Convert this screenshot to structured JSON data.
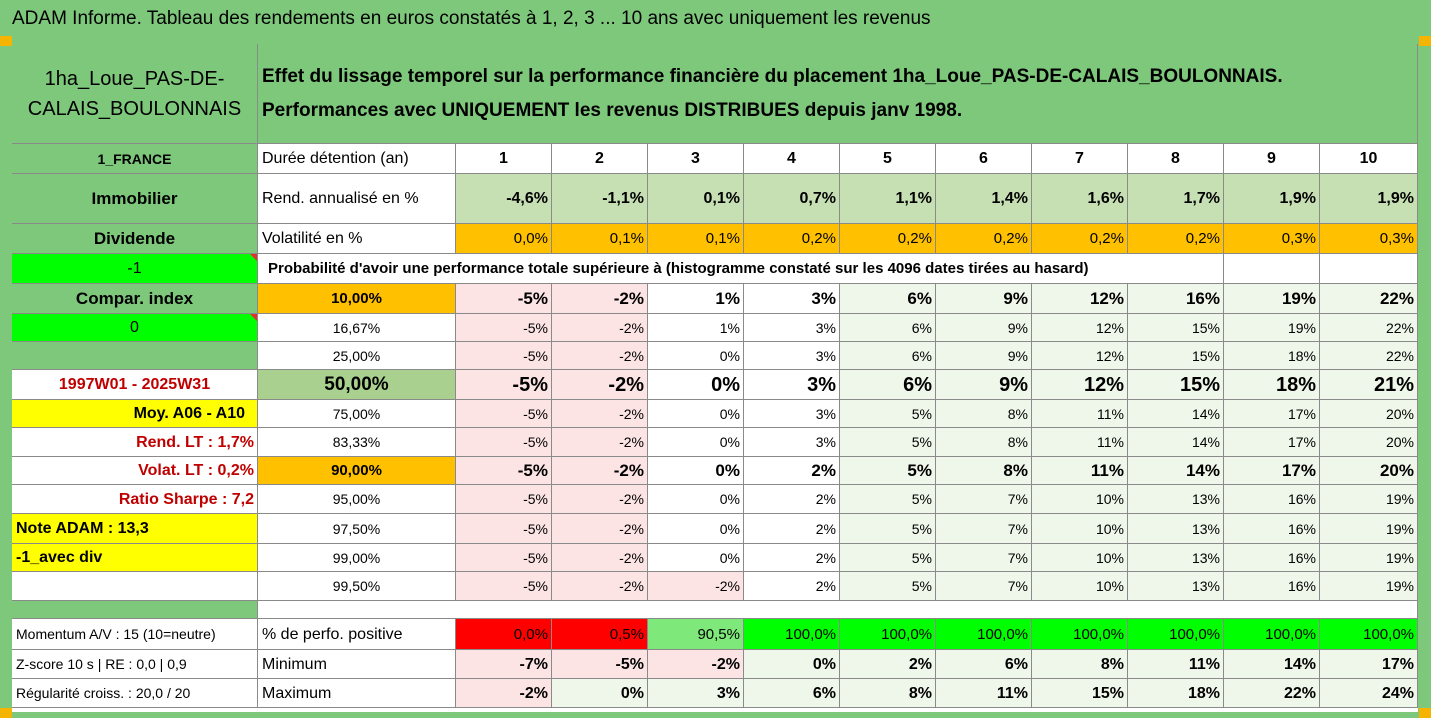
{
  "title": "ADAM Informe. Tableau des rendements en euros constatés à 1, 2, 3 ... 10 ans avec uniquement les revenus",
  "colors": {
    "header_green": "#7ec87c",
    "light_green": "#c6e0b4",
    "orange": "#ffc000",
    "bright_green": "#00ff00",
    "red": "#ff0000",
    "yellow": "#ffff00",
    "pink": "#fde4e4",
    "pale_green": "#eef7ea",
    "dark_red_text": "#c00000"
  },
  "left": {
    "fund_name": "1ha_Loue_PAS-DE-CALAIS_BOULONNAIS",
    "country": "1_FRANCE",
    "category": "Immobilier",
    "dividend_label": "Dividende",
    "flag_value": "-1",
    "compar_label": "Compar. index",
    "compar_value": "0",
    "period": "1997W01 - 2025W31",
    "moy": "Moy. A06 - A10",
    "rend_lt": "Rend. LT :    1,7%",
    "volat_lt": "Volat. LT :    0,2%",
    "sharpe": "Ratio Sharpe :    7,2",
    "note": "Note ADAM : 13,3",
    "avec_div": "-1_avec div",
    "momentum": "Momentum A/V : 15 (10=neutre)",
    "zscore": "Z-score 10 s  | RE : 0,0  | 0,9",
    "regularite": "Régularité croiss. : 20,0 / 20"
  },
  "description": "Effet du lissage temporel sur la performance financière du placement 1ha_Loue_PAS-DE-CALAIS_BOULONNAIS. Performances avec UNIQUEMENT les revenus DISTRIBUES depuis janv 1998.",
  "header": {
    "duration_label": "Durée détention (an)",
    "years": [
      "1",
      "2",
      "3",
      "4",
      "5",
      "6",
      "7",
      "8",
      "9",
      "10"
    ]
  },
  "rend": {
    "label": "Rend. annualisé en %",
    "values": [
      "-4,6%",
      "-1,1%",
      "0,1%",
      "0,7%",
      "1,1%",
      "1,4%",
      "1,6%",
      "1,7%",
      "1,9%",
      "1,9%"
    ]
  },
  "volat": {
    "label": "Volatilité en %",
    "values": [
      "0,0%",
      "0,1%",
      "0,1%",
      "0,2%",
      "0,2%",
      "0,2%",
      "0,2%",
      "0,2%",
      "0,3%",
      "0,3%"
    ]
  },
  "proba_title": "Probabilité d'avoir une performance totale supérieure à (histogramme constaté sur les 4096 dates tirées au hasard)",
  "percentiles": [
    {
      "p": "10,00%",
      "values": [
        "-5%",
        "-2%",
        "1%",
        "3%",
        "6%",
        "9%",
        "12%",
        "16%",
        "19%",
        "22%"
      ]
    },
    {
      "p": "16,67%",
      "values": [
        "-5%",
        "-2%",
        "1%",
        "3%",
        "6%",
        "9%",
        "12%",
        "15%",
        "19%",
        "22%"
      ]
    },
    {
      "p": "25,00%",
      "values": [
        "-5%",
        "-2%",
        "0%",
        "3%",
        "6%",
        "9%",
        "12%",
        "15%",
        "18%",
        "22%"
      ]
    },
    {
      "p": "50,00%",
      "values": [
        "-5%",
        "-2%",
        "0%",
        "3%",
        "6%",
        "9%",
        "12%",
        "15%",
        "18%",
        "21%"
      ]
    },
    {
      "p": "75,00%",
      "values": [
        "-5%",
        "-2%",
        "0%",
        "3%",
        "5%",
        "8%",
        "11%",
        "14%",
        "17%",
        "20%"
      ]
    },
    {
      "p": "83,33%",
      "values": [
        "-5%",
        "-2%",
        "0%",
        "3%",
        "5%",
        "8%",
        "11%",
        "14%",
        "17%",
        "20%"
      ]
    },
    {
      "p": "90,00%",
      "values": [
        "-5%",
        "-2%",
        "0%",
        "2%",
        "5%",
        "8%",
        "11%",
        "14%",
        "17%",
        "20%"
      ]
    },
    {
      "p": "95,00%",
      "values": [
        "-5%",
        "-2%",
        "0%",
        "2%",
        "5%",
        "7%",
        "10%",
        "13%",
        "16%",
        "19%"
      ]
    },
    {
      "p": "97,50%",
      "values": [
        "-5%",
        "-2%",
        "0%",
        "2%",
        "5%",
        "7%",
        "10%",
        "13%",
        "16%",
        "19%"
      ]
    },
    {
      "p": "99,00%",
      "values": [
        "-5%",
        "-2%",
        "0%",
        "2%",
        "5%",
        "7%",
        "10%",
        "13%",
        "16%",
        "19%"
      ]
    },
    {
      "p": "99,50%",
      "values": [
        "-5%",
        "-2%",
        "-2%",
        "2%",
        "5%",
        "7%",
        "10%",
        "13%",
        "16%",
        "19%"
      ]
    }
  ],
  "positive": {
    "label": "% de perfo. positive",
    "values": [
      "0,0%",
      "0,5%",
      "90,5%",
      "100,0%",
      "100,0%",
      "100,0%",
      "100,0%",
      "100,0%",
      "100,0%",
      "100,0%"
    ]
  },
  "minimum": {
    "label": "Minimum",
    "values": [
      "-7%",
      "-5%",
      "-2%",
      "0%",
      "2%",
      "6%",
      "8%",
      "11%",
      "14%",
      "17%"
    ]
  },
  "maximum": {
    "label": "Maximum",
    "values": [
      "-2%",
      "0%",
      "3%",
      "6%",
      "8%",
      "11%",
      "15%",
      "18%",
      "22%",
      "24%"
    ]
  }
}
